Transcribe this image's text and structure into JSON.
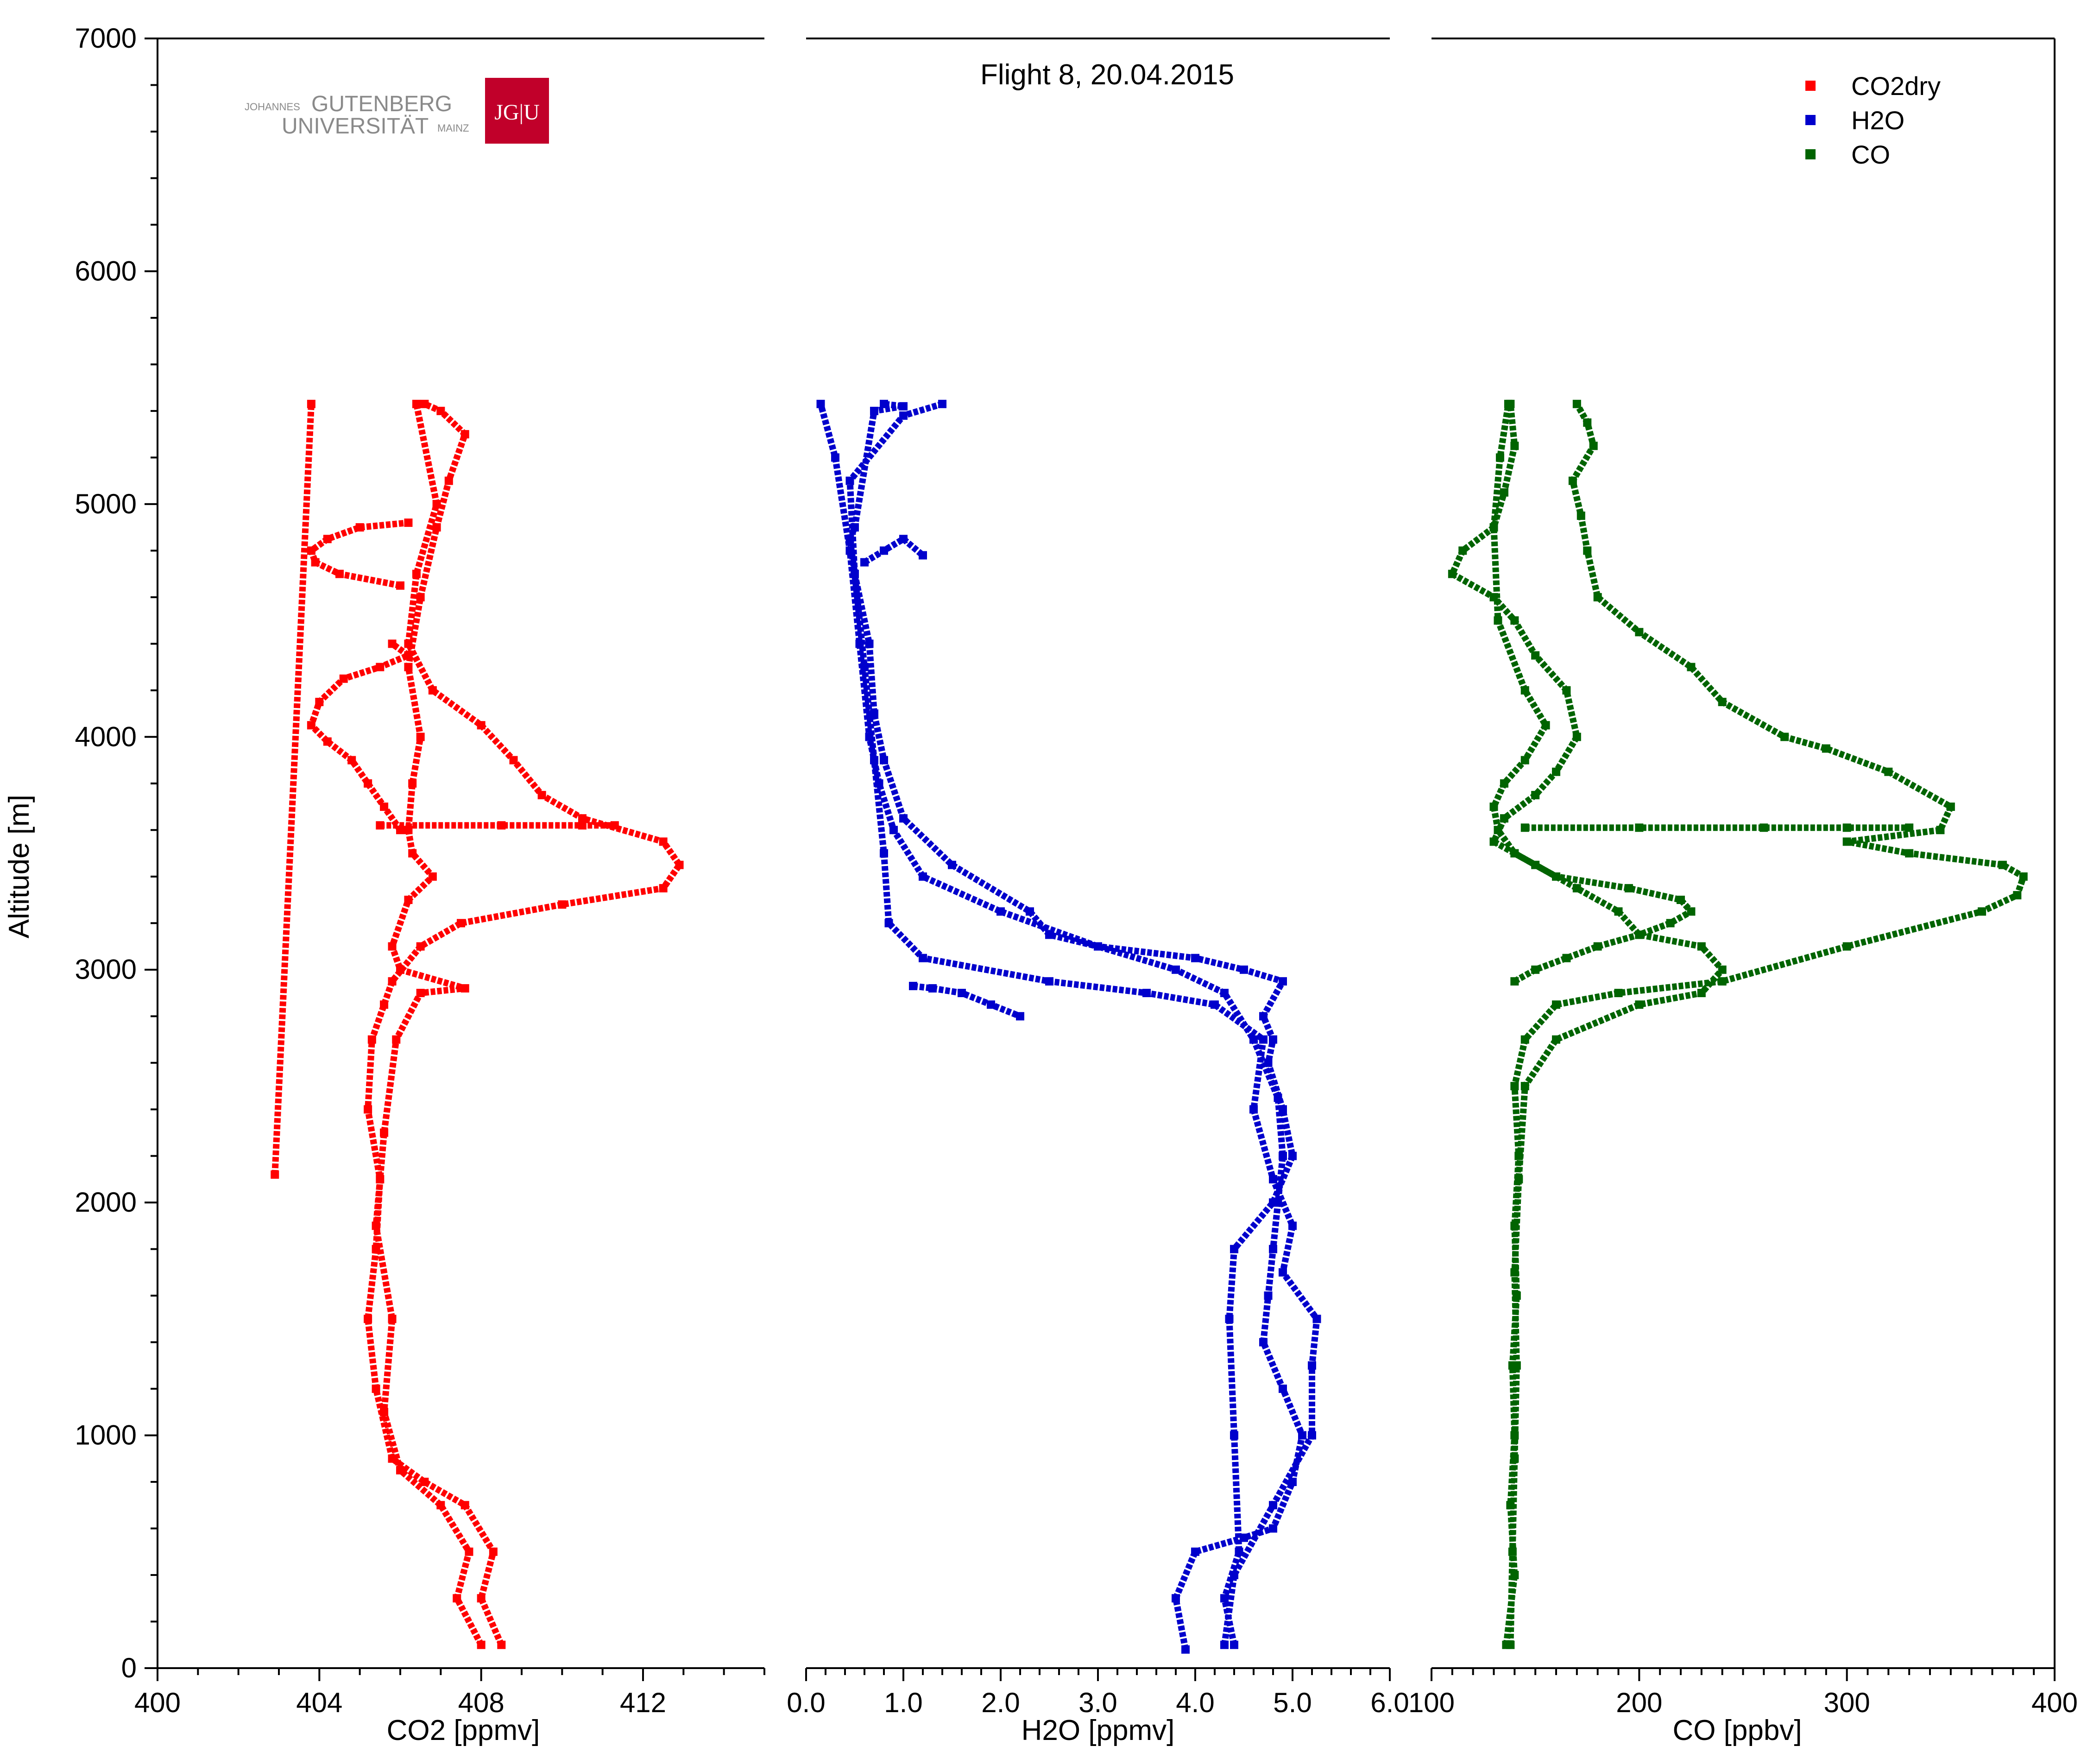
{
  "chart_data": {
    "type": "scatter",
    "title": "Flight 8, 20.04.2015",
    "ylabel": "Altitude [m]",
    "ylim": [
      0,
      7000
    ],
    "y_ticks": [
      "0",
      "1000",
      "2000",
      "3000",
      "4000",
      "5000",
      "6000",
      "7000"
    ],
    "logo": {
      "line1_small": "JOHANNES",
      "line1_big": "GUTENBERG",
      "line2_big": "UNIVERSITÄT",
      "line2_small": "MAINZ",
      "mark": "JG|U"
    },
    "legend": [
      {
        "label": "CO2dry",
        "color": "#ff0000"
      },
      {
        "label": "H2O",
        "color": "#0000cc"
      },
      {
        "label": "CO",
        "color": "#006400"
      }
    ],
    "panels": [
      {
        "name": "CO2dry",
        "xlabel": "CO2 [ppmv]",
        "xlim": [
          400,
          415
        ],
        "x_ticks": [
          "400",
          "404",
          "408",
          "412"
        ],
        "x_tick_values": [
          400,
          404,
          408,
          412
        ],
        "color": "#ff0000",
        "profiles": [
          {
            "x": [
              408.5,
              408.0,
              408.3,
              407.6,
              406.6,
              405.8,
              405.4,
              405.2,
              405.4,
              405.5,
              405.2,
              405.3,
              405.6,
              405.8,
              406.5,
              407.5,
              410.0,
              412.5,
              412.9,
              412.5,
              410.5,
              409.5,
              408.8,
              408.0,
              406.8,
              406.2,
              406.4,
              406.9,
              406.4
            ],
            "y": [
              100,
              300,
              500,
              700,
              800,
              900,
              1200,
              1500,
              1800,
              2100,
              2400,
              2700,
              2850,
              2950,
              3100,
              3200,
              3280,
              3350,
              3450,
              3550,
              3650,
              3750,
              3900,
              4050,
              4200,
              4400,
              4700,
              5000,
              5430
            ]
          },
          {
            "x": [
              408.0,
              407.4,
              407.7,
              407.0,
              406.0,
              405.6,
              405.8,
              405.4,
              405.6,
              405.9,
              406.5,
              407.6,
              406.0,
              405.8,
              406.2,
              406.8,
              406.3,
              406.2,
              406.3,
              406.5,
              406.2,
              406.5,
              406.9,
              407.2,
              407.6,
              407.0,
              406.6
            ],
            "y": [
              100,
              300,
              500,
              700,
              850,
              1100,
              1500,
              1900,
              2300,
              2700,
              2900,
              2920,
              3000,
              3100,
              3300,
              3400,
              3500,
              3600,
              3800,
              4000,
              4300,
              4600,
              4900,
              5100,
              5300,
              5400,
              5430
            ]
          },
          {
            "x": [
              406.0,
              405.6,
              405.2,
              404.8,
              404.2,
              403.8,
              404.0,
              404.6,
              405.5,
              406.2,
              405.8
            ],
            "y": [
              3600,
              3700,
              3800,
              3900,
              3980,
              4050,
              4150,
              4250,
              4300,
              4350,
              4400
            ]
          },
          {
            "x": [
              406.0,
              404.5,
              403.9,
              403.8,
              404.2,
              405.0,
              406.2
            ],
            "y": [
              4650,
              4700,
              4750,
              4800,
              4850,
              4900,
              4920
            ]
          },
          {
            "x": [
              405.5,
              408.5,
              410.5,
              411.3
            ],
            "y": [
              3620,
              3620,
              3620,
              3620
            ]
          },
          {
            "x": [
              402.9,
              403.8
            ],
            "y": [
              2120,
              5430
            ]
          }
        ]
      },
      {
        "name": "H2O",
        "xlabel": "H2O [ppmv]",
        "xlim": [
          0,
          6
        ],
        "x_ticks": [
          "0.0",
          "1.0",
          "2.0",
          "3.0",
          "4.0",
          "5.0",
          "6.0"
        ],
        "x_tick_values": [
          0,
          1,
          2,
          3,
          4,
          5,
          6
        ],
        "color": "#0000cc",
        "profiles": [
          {
            "x": [
              3.9,
              3.8,
              4.0,
              4.5,
              4.8,
              5.0,
              5.1,
              4.9,
              4.7,
              4.75,
              4.8,
              4.85,
              4.9,
              4.85,
              4.6,
              4.3,
              3.8,
              3.0,
              2.0,
              1.2,
              0.9,
              0.75,
              0.65,
              0.55,
              0.45,
              0.3,
              0.15
            ],
            "y": [
              80,
              300,
              500,
              560,
              600,
              800,
              1000,
              1200,
              1400,
              1600,
              1800,
              2000,
              2200,
              2450,
              2700,
              2900,
              3000,
              3100,
              3250,
              3400,
              3600,
              3800,
              4000,
              4400,
              4800,
              5200,
              5430
            ]
          },
          {
            "x": [
              4.3,
              4.4,
              4.8,
              5.2,
              5.2,
              5.25,
              4.9,
              5.0,
              4.8,
              4.6,
              4.7,
              4.2,
              3.5,
              2.5,
              1.2,
              0.85,
              0.8,
              0.7,
              0.6,
              0.5,
              0.45,
              1.0,
              1.4
            ],
            "y": [
              100,
              400,
              700,
              1000,
              1300,
              1500,
              1700,
              1900,
              2100,
              2400,
              2700,
              2850,
              2900,
              2950,
              3050,
              3200,
              3500,
              3900,
              4300,
              4700,
              5100,
              5380,
              5430
            ]
          },
          {
            "x": [
              4.4,
              4.3,
              4.45,
              4.4,
              4.35,
              4.4,
              4.8,
              5.0,
              4.9,
              4.75,
              4.8,
              4.7,
              4.9,
              4.5,
              4.0,
              3.0,
              2.5,
              2.3,
              1.5,
              1.0,
              0.8,
              0.7,
              0.65,
              0.5,
              0.45,
              0.5,
              0.7,
              1.0,
              0.8
            ],
            "y": [
              100,
              300,
              500,
              1000,
              1500,
              1800,
              2000,
              2200,
              2400,
              2600,
              2700,
              2800,
              2950,
              3000,
              3050,
              3100,
              3150,
              3250,
              3450,
              3650,
              3900,
              4100,
              4400,
              4700,
              4850,
              4900,
              5400,
              5420,
              5430
            ]
          },
          {
            "x": [
              1.1,
              1.3,
              1.6,
              1.9,
              2.2
            ],
            "y": [
              2930,
              2920,
              2900,
              2850,
              2800
            ]
          },
          {
            "x": [
              0.6,
              0.8,
              1.0,
              1.2
            ],
            "y": [
              4750,
              4800,
              4850,
              4780
            ]
          }
        ]
      },
      {
        "name": "CO",
        "xlabel": "CO [ppbv]",
        "xlim": [
          100,
          400
        ],
        "x_ticks": [
          "100",
          "200",
          "300",
          "400"
        ],
        "x_tick_values": [
          100,
          200,
          300,
          400
        ],
        "color": "#006400",
        "profiles": [
          {
            "x": [
              136,
              140,
              138,
              140,
              139,
              141,
              140,
              142,
              140,
              145,
              160,
              190,
              240,
              300,
              365,
              382,
              385,
              375,
              330,
              300,
              345,
              350,
              320,
              290,
              270,
              240,
              225,
              200,
              180,
              175,
              172,
              168,
              178,
              175,
              170
            ],
            "y": [
              100,
              400,
              700,
              1000,
              1300,
              1600,
              1900,
              2200,
              2500,
              2700,
              2850,
              2900,
              2950,
              3100,
              3250,
              3320,
              3400,
              3450,
              3500,
              3550,
              3600,
              3700,
              3850,
              3950,
              4000,
              4150,
              4300,
              4450,
              4600,
              4800,
              4950,
              5100,
              5250,
              5350,
              5430
            ]
          },
          {
            "x": [
              138,
              139,
              140,
              141,
              140,
              142,
              145,
              160,
              200,
              230,
              240,
              230,
              200,
              190,
              170,
              150,
              130,
              135,
              150,
              160,
              170,
              165,
              150,
              140,
              130,
              110,
              115,
              130,
              135,
              140,
              138
            ],
            "y": [
              100,
              500,
              900,
              1300,
              1700,
              2100,
              2500,
              2700,
              2850,
              2900,
              3000,
              3100,
              3150,
              3250,
              3350,
              3450,
              3550,
              3650,
              3750,
              3850,
              4000,
              4200,
              4350,
              4500,
              4600,
              4700,
              4800,
              4900,
              5050,
              5250,
              5430
            ]
          },
          {
            "x": [
              140,
              150,
              165,
              180,
              200,
              215,
              225,
              220,
              195,
              160,
              140,
              132,
              130,
              135,
              145,
              155,
              145,
              132,
              130,
              133,
              137
            ],
            "y": [
              2950,
              3000,
              3050,
              3100,
              3150,
              3200,
              3250,
              3300,
              3350,
              3400,
              3500,
              3600,
              3700,
              3800,
              3900,
              4050,
              4200,
              4500,
              4900,
              5200,
              5430
            ]
          },
          {
            "x": [
              145,
              200,
              260,
              300,
              330
            ],
            "y": [
              3610,
              3610,
              3610,
              3610,
              3610
            ]
          }
        ]
      }
    ]
  }
}
